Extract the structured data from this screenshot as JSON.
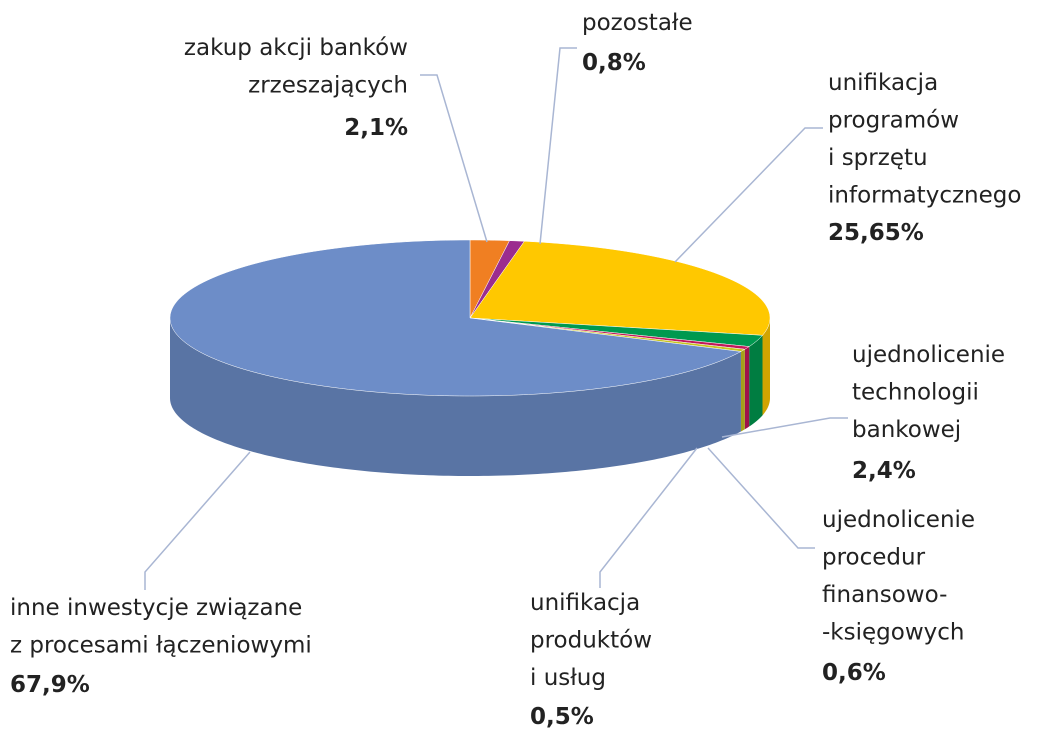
{
  "chart_data": {
    "type": "pie",
    "categories": [
      "zakup akcji banków\nzrzeszających",
      "pozostałe",
      "unifikacja\nprogramów\ni sprzętu\ninformatycznego",
      "ujednolicenie\ntechnologii\nbankowej",
      "ujednolicenie\nprocedur\nfinansowo-\n-księgowych",
      "unifikacja\nproduktów\ni usług",
      "inne inwestycje związane\nz procesami łączeniowymi"
    ],
    "values": [
      2.1,
      0.8,
      25.65,
      2.4,
      0.6,
      0.5,
      67.9
    ],
    "value_labels": [
      "2,1%",
      "0,8%",
      "25,65%",
      "2,4%",
      "0,6%",
      "0,5%",
      "67,9%"
    ],
    "colors": [
      "#f07f22",
      "#9b2d8f",
      "#ffc800",
      "#00994f",
      "#c2185b",
      "#c8c420",
      "#6d8dc8"
    ]
  }
}
